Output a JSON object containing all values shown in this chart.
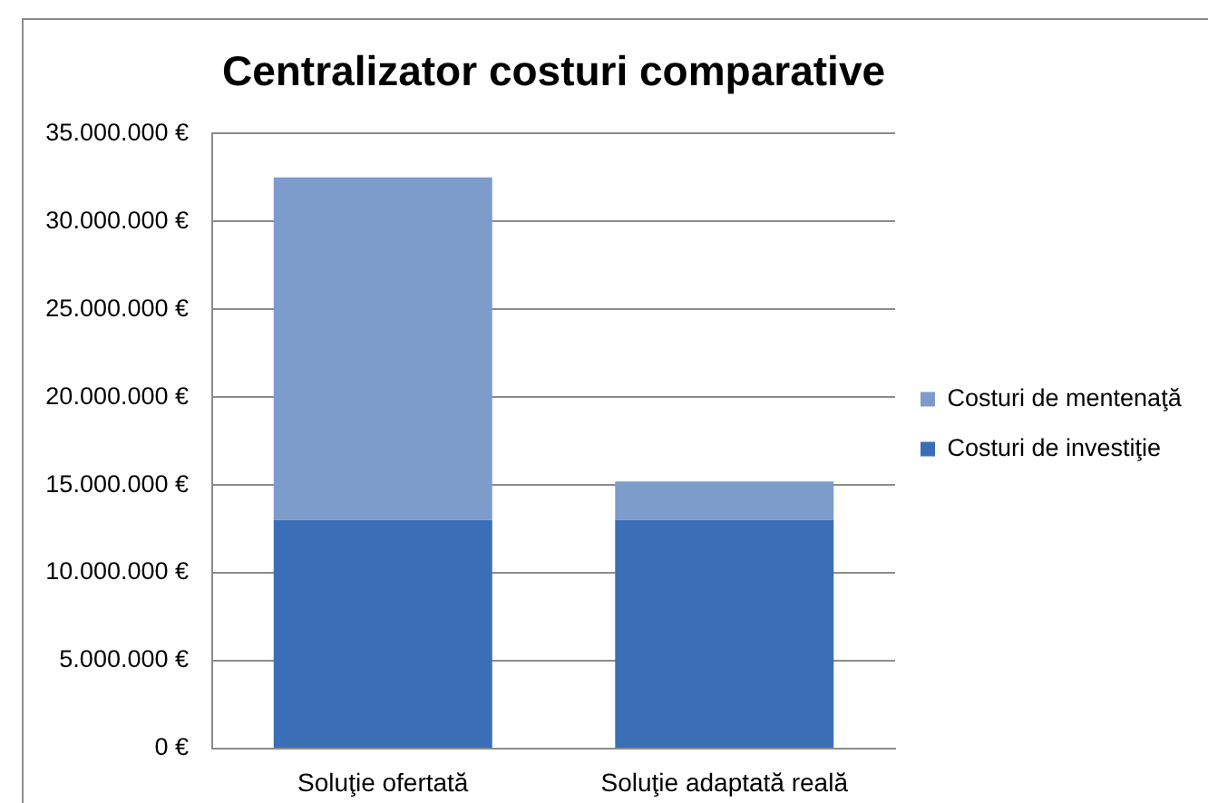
{
  "chart_data": {
    "type": "bar",
    "title": "Centralizator costuri comparative",
    "categories": [
      "Soluţie ofertată",
      "Soluţie adaptată reală"
    ],
    "series": [
      {
        "name": "Costuri de investiţie",
        "color": "#3a6fb7",
        "values": [
          13000000,
          13000000
        ]
      },
      {
        "name": "Costuri de mentenaţă",
        "color": "#7d9bcb",
        "values": [
          19500000,
          2200000
        ]
      }
    ],
    "stacked": true,
    "ylim": [
      0,
      35000000
    ],
    "yticks": [
      {
        "value": 0,
        "label": "0 €"
      },
      {
        "value": 5000000,
        "label": "5.000.000 €"
      },
      {
        "value": 10000000,
        "label": "10.000.000 €"
      },
      {
        "value": 15000000,
        "label": "15.000.000 €"
      },
      {
        "value": 20000000,
        "label": "20.000.000 €"
      },
      {
        "value": 25000000,
        "label": "25.000.000 €"
      },
      {
        "value": 30000000,
        "label": "30.000.000 €"
      },
      {
        "value": 35000000,
        "label": "35.000.000 €"
      }
    ],
    "grid": "y",
    "legend": "right"
  }
}
